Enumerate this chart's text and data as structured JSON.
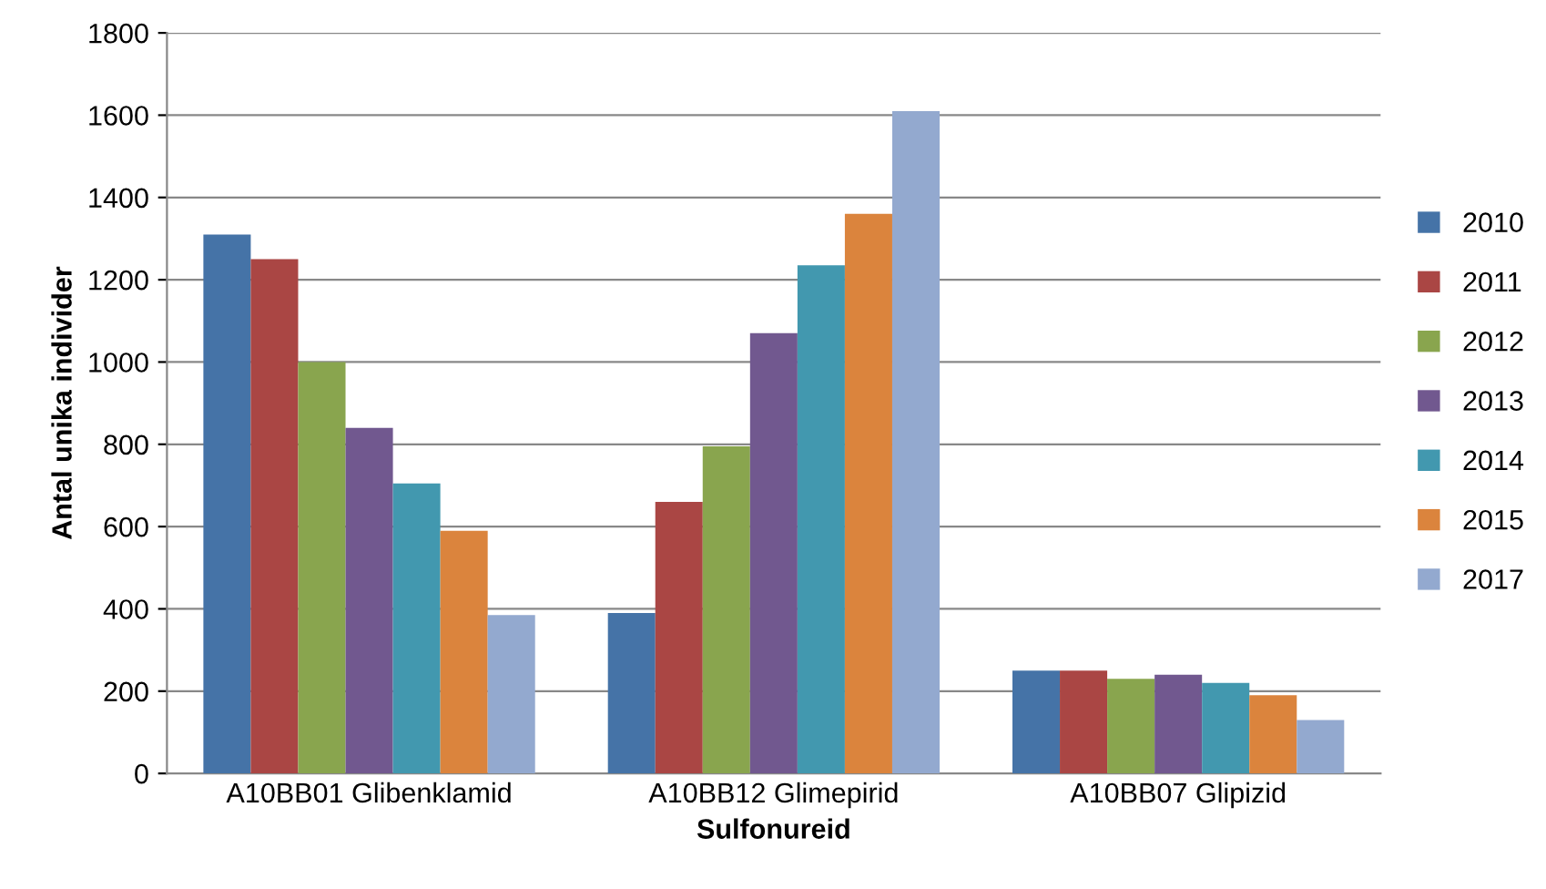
{
  "chart_data": {
    "type": "bar",
    "xlabel": "Sulfonureid",
    "ylabel": "Antal unika individer",
    "categories": [
      "A10BB01 Glibenklamid",
      "A10BB12 Glimepirid",
      "A10BB07 Glipizid"
    ],
    "series": [
      {
        "name": "2010",
        "color": "#4573a7",
        "values": [
          1310,
          390,
          250
        ]
      },
      {
        "name": "2011",
        "color": "#aa4644",
        "values": [
          1250,
          660,
          250
        ]
      },
      {
        "name": "2012",
        "color": "#89a54e",
        "values": [
          1000,
          795,
          230
        ]
      },
      {
        "name": "2013",
        "color": "#71588f",
        "values": [
          840,
          1070,
          240
        ]
      },
      {
        "name": "2014",
        "color": "#4298af",
        "values": [
          705,
          1235,
          220
        ]
      },
      {
        "name": "2015",
        "color": "#db843d",
        "values": [
          590,
          1360,
          190
        ]
      },
      {
        "name": "2017",
        "color": "#93a9cf",
        "values": [
          385,
          1610,
          130
        ]
      }
    ],
    "ylim": [
      0,
      1800
    ],
    "yticks": [
      0,
      200,
      400,
      600,
      800,
      1000,
      1200,
      1400,
      1600,
      1800
    ],
    "grid": "y",
    "legend": "right"
  }
}
